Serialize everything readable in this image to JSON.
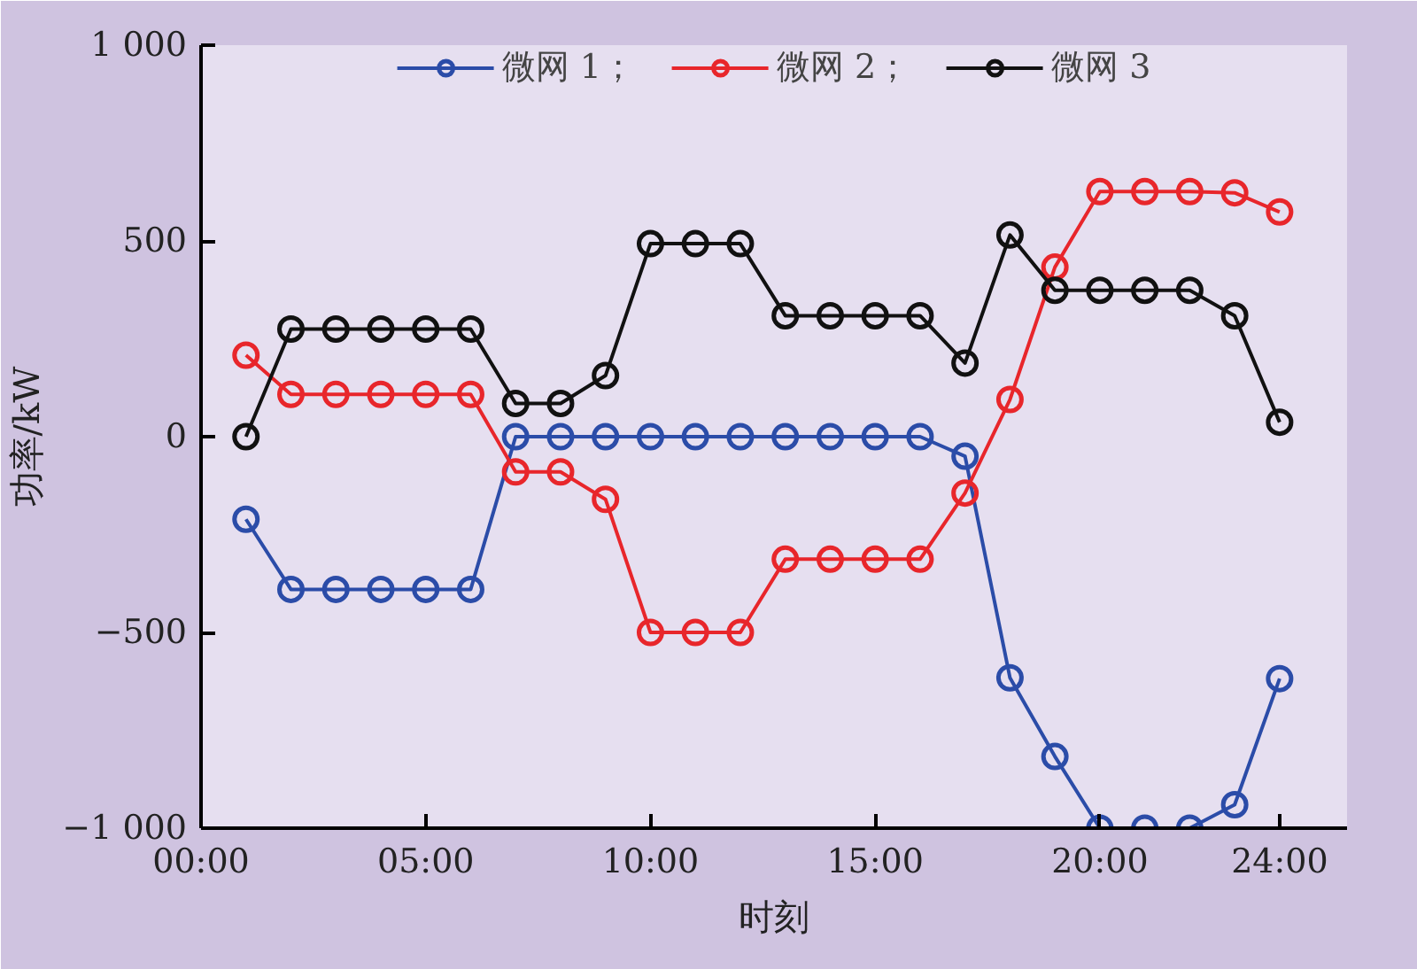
{
  "chart_data": {
    "type": "line",
    "xlabel": "时刻",
    "ylabel": "功率/kW",
    "x": [
      1,
      2,
      3,
      4,
      5,
      6,
      7,
      8,
      9,
      10,
      11,
      12,
      13,
      14,
      15,
      16,
      17,
      18,
      19,
      20,
      21,
      22,
      23,
      24
    ],
    "xlim": [
      0,
      25.5
    ],
    "xticks": [
      {
        "value": 0,
        "label": "00:00"
      },
      {
        "value": 5,
        "label": "05:00"
      },
      {
        "value": 10,
        "label": "10:00"
      },
      {
        "value": 15,
        "label": "15:00"
      },
      {
        "value": 20,
        "label": "20:00"
      },
      {
        "value": 24,
        "label": "24:00"
      }
    ],
    "ylim": [
      -1000,
      1000
    ],
    "yticks": [
      {
        "value": -1000,
        "label": "−1 000"
      },
      {
        "value": -500,
        "label": "−500"
      },
      0,
      500,
      {
        "value": 1000,
        "label": "1 000"
      }
    ],
    "grid": false,
    "legend": "top",
    "marker": "circle",
    "line_style": "solid",
    "series": [
      {
        "name": "微网 1；",
        "color": "#2b4ca8",
        "values": [
          -211,
          -390,
          -390,
          -390,
          -390,
          -390,
          0,
          0,
          0,
          0,
          0,
          0,
          0,
          0,
          0,
          0,
          -50,
          -616,
          -817,
          -1000,
          -1000,
          -1000,
          -940,
          -618
        ]
      },
      {
        "name": "微网 2；",
        "color": "#e8262b",
        "values": [
          208,
          108,
          108,
          108,
          108,
          108,
          -90,
          -90,
          -160,
          -500,
          -500,
          -500,
          -313,
          -313,
          -313,
          -313,
          -144,
          95,
          433,
          626,
          626,
          626,
          623,
          574
        ]
      },
      {
        "name": "微网 3",
        "color": "#111111",
        "values": [
          0,
          275,
          275,
          275,
          275,
          275,
          85,
          85,
          156,
          493,
          493,
          493,
          309,
          309,
          309,
          309,
          188,
          515,
          374,
          374,
          374,
          374,
          309,
          37
        ]
      }
    ]
  }
}
